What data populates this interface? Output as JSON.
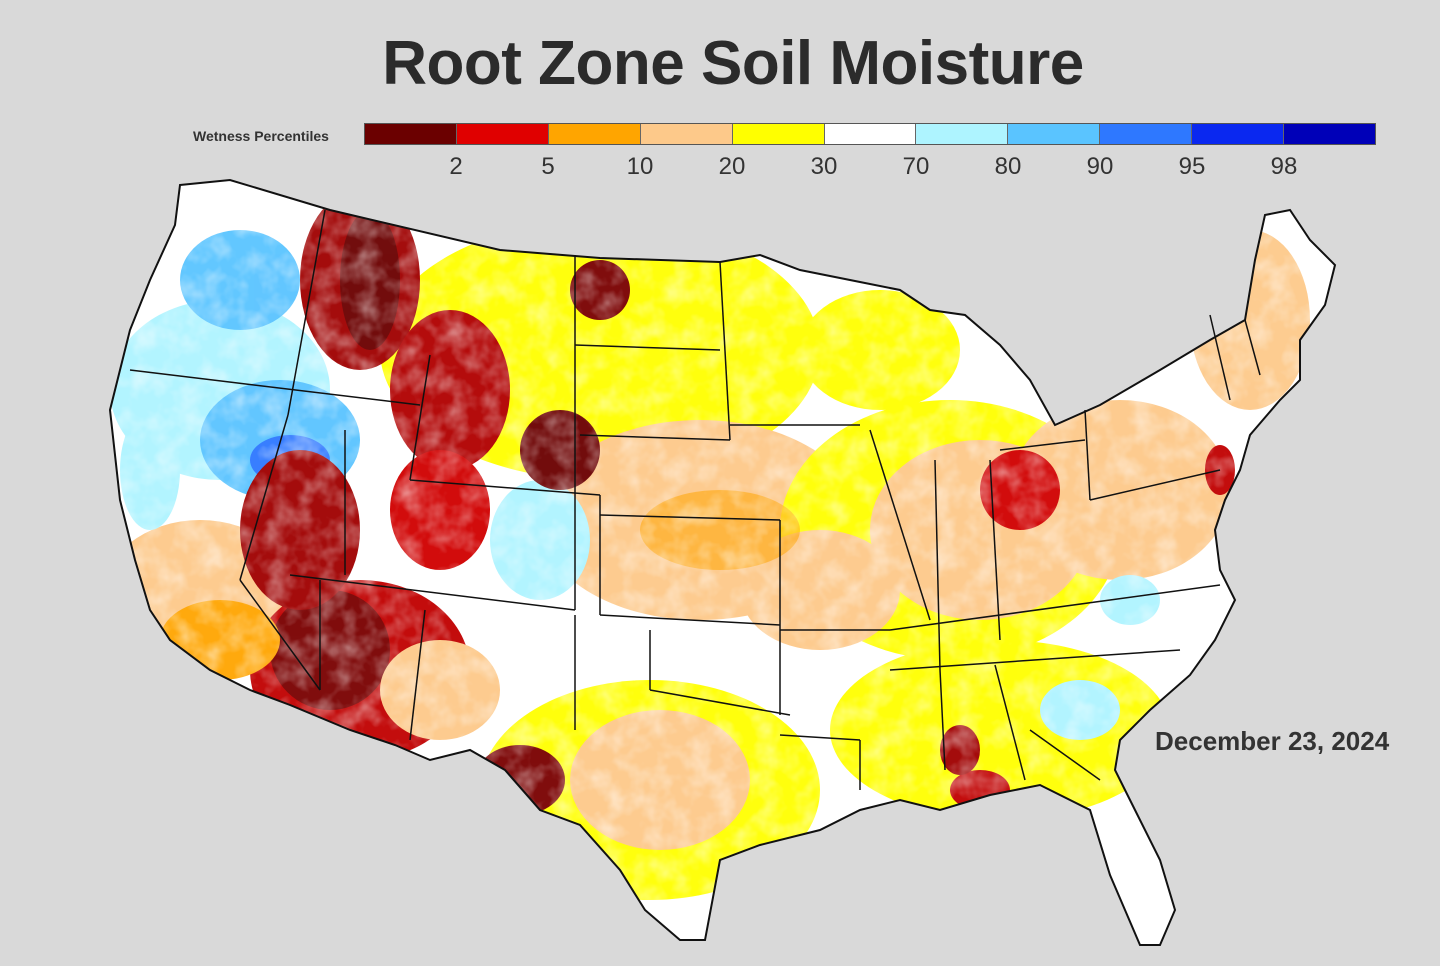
{
  "title": "Root Zone Soil Moisture",
  "legend": {
    "label": "Wetness Percentiles",
    "colors": [
      "#6b0000",
      "#e00000",
      "#ffa500",
      "#fdc98a",
      "#ffff00",
      "#ffffff",
      "#aef4ff",
      "#5ac4ff",
      "#2e78ff",
      "#0a28f0",
      "#0000b8"
    ],
    "ticks": [
      "2",
      "5",
      "10",
      "20",
      "30",
      "70",
      "80",
      "90",
      "95",
      "98"
    ]
  },
  "date": "December 23, 2024",
  "map": {
    "region": "contiguous United States",
    "land_color": "#ffffff",
    "border_color": "#111111"
  }
}
